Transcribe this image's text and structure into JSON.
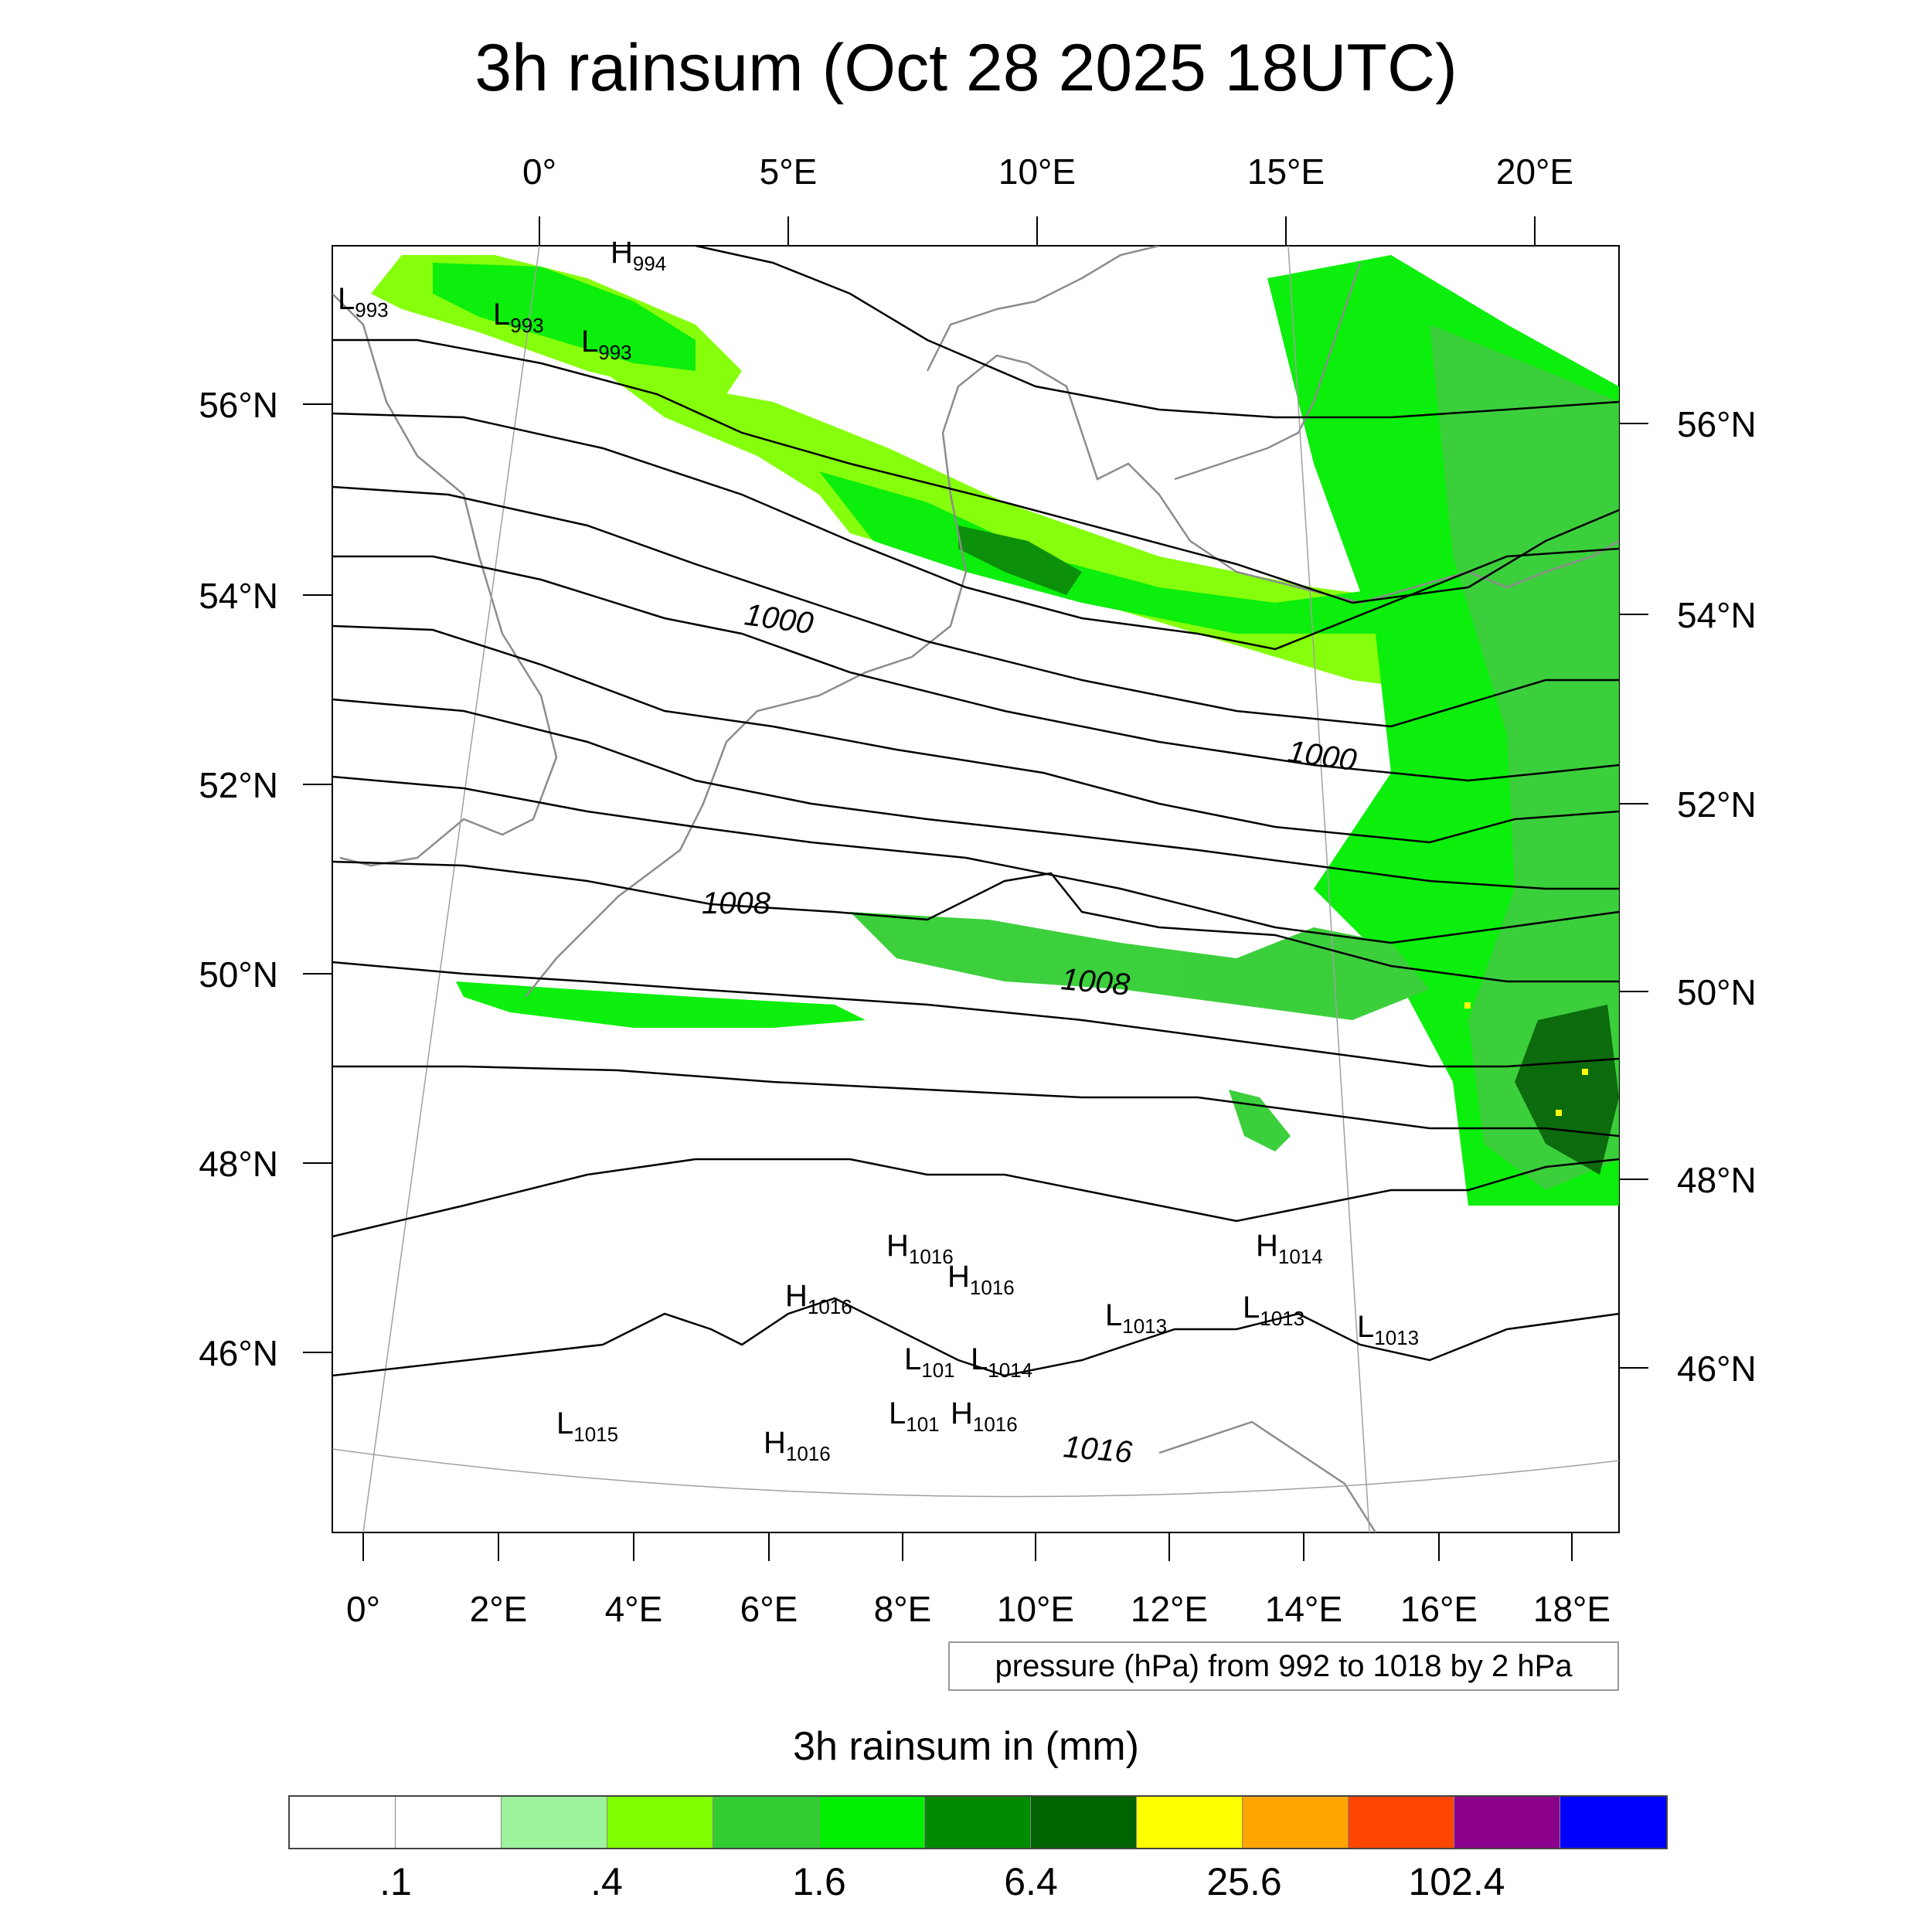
{
  "title": "3h rainsum (Oct 28 2025 18UTC)",
  "map": {
    "top_lon_labels": [
      "0°",
      "5°E",
      "10°E",
      "15°E",
      "20°E"
    ],
    "bottom_lon_labels": [
      "0°",
      "2°E",
      "4°E",
      "6°E",
      "8°E",
      "10°E",
      "12°E",
      "14°E",
      "16°E",
      "18°E"
    ],
    "left_lat_labels": [
      "56°N",
      "54°N",
      "52°N",
      "50°N",
      "48°N",
      "46°N"
    ],
    "right_lat_labels": [
      "56°N",
      "54°N",
      "52°N",
      "50°N",
      "48°N",
      "46°N"
    ],
    "contour_labels": [
      "1000",
      "1000",
      "1008",
      "1008",
      "1016"
    ],
    "pressure_centers": [
      {
        "type": "H",
        "value": "994"
      },
      {
        "type": "L",
        "value": "993"
      },
      {
        "type": "L",
        "value": "993"
      },
      {
        "type": "L",
        "value": "993"
      },
      {
        "type": "H",
        "value": "1016"
      },
      {
        "type": "H",
        "value": "1016"
      },
      {
        "type": "H",
        "value": "1014"
      },
      {
        "type": "H",
        "value": "1016"
      },
      {
        "type": "L",
        "value": "1013"
      },
      {
        "type": "L",
        "value": "1013"
      },
      {
        "type": "L",
        "value": "1013"
      },
      {
        "type": "L",
        "value": "101"
      },
      {
        "type": "L",
        "value": "1014"
      },
      {
        "type": "L",
        "value": "101"
      },
      {
        "type": "H",
        "value": "1016"
      },
      {
        "type": "L",
        "value": "1015"
      },
      {
        "type": "H",
        "value": "1016"
      }
    ]
  },
  "pressure_note": "pressure (hPa) from 992 to 1018 by 2 hPa",
  "legend": {
    "title": "3h rainsum in (mm)",
    "colors": [
      "#ffffff",
      "#ffffff",
      "#9cf39c",
      "#80ff00",
      "#32cd32",
      "#00ee00",
      "#008b00",
      "#006400",
      "#ffff00",
      "#ffa500",
      "#ff4500",
      "#8b008b",
      "#0000ff"
    ],
    "labels": [
      ".1",
      ".4",
      "1.6",
      "6.4",
      "25.6",
      "102.4"
    ]
  },
  "colors": {
    "contour": "#000000",
    "coastline": "#8c8c8c",
    "gridline": "#a0a0a0"
  }
}
